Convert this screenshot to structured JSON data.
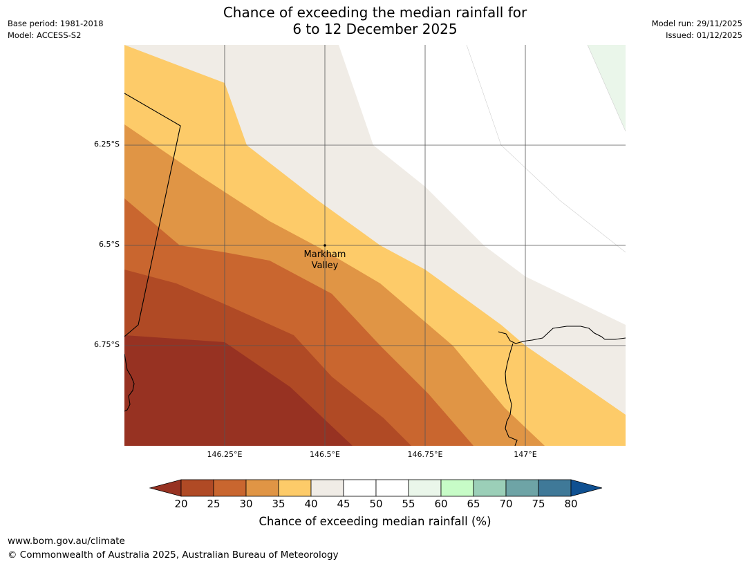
{
  "title": {
    "line1": "Chance of exceeding the median rainfall for",
    "line2": "6 to 12 December 2025"
  },
  "meta": {
    "base_period": "Base period: 1981-2018",
    "model": "Model: ACCESS-S2",
    "model_run": "Model run: 29/11/2025",
    "issued": "Issued: 01/12/2025"
  },
  "map": {
    "place_label_line1": "Markham",
    "place_label_line2": "Valley",
    "lat_labels": [
      "6.25°S",
      "6.5°S",
      "6.75°S"
    ],
    "lon_labels": [
      "146.25°E",
      "146.5°E",
      "146.75°E",
      "147°E"
    ]
  },
  "colorbar": {
    "title": "Chance of exceeding median rainfall (%)",
    "ticks": [
      "20",
      "25",
      "30",
      "35",
      "40",
      "45",
      "50",
      "55",
      "60",
      "65",
      "70",
      "75",
      "80"
    ],
    "under_color": "#973222",
    "over_color": "#0f5091",
    "colors": [
      "#b04a25",
      "#c9662f",
      "#e09545",
      "#fdcb69",
      "#f0ece6",
      "#ffffff",
      "#ffffff",
      "#eaf6ea",
      "#c7fcc7",
      "#9bcfb8",
      "#6ea4a6",
      "#3f7998"
    ]
  },
  "footer": {
    "url": "www.bom.gov.au/climate",
    "copyright": "© Commonwealth of Australia 2025, Australian Bureau of Meteorology"
  }
}
